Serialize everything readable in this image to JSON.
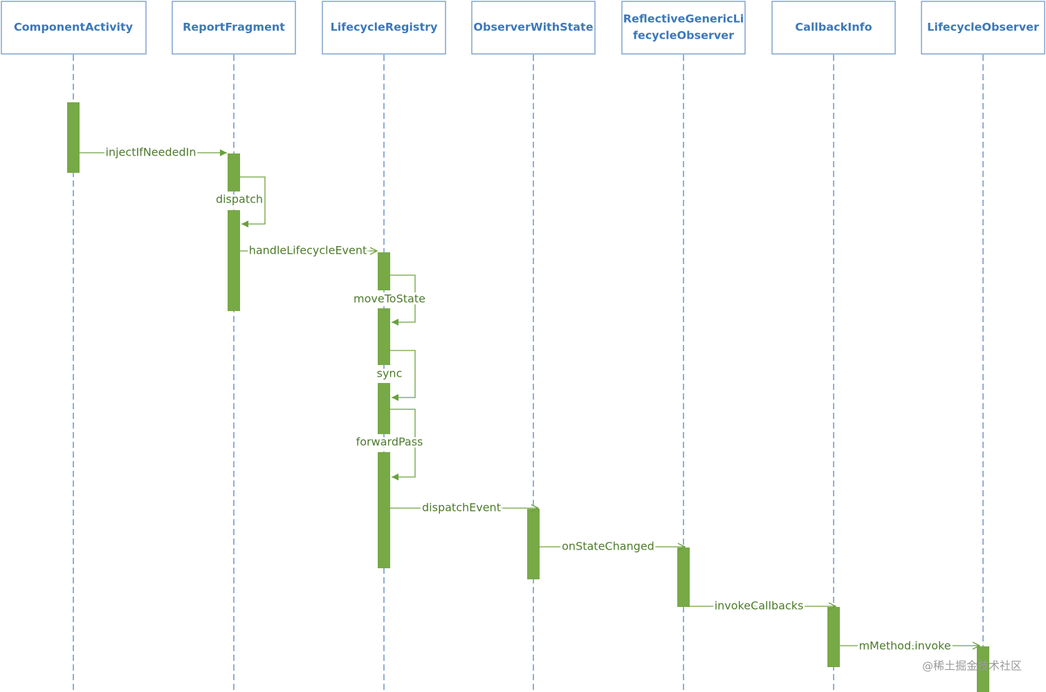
{
  "participants": [
    {
      "lines": [
        "ComponentActivity"
      ]
    },
    {
      "lines": [
        "ReportFragment"
      ]
    },
    {
      "lines": [
        "LifecycleRegistry"
      ]
    },
    {
      "lines": [
        "ObserverWithState"
      ]
    },
    {
      "lines": [
        "ReflectiveGenericLi",
        "fecycleObserver"
      ]
    },
    {
      "lines": [
        "CallbackInfo"
      ]
    },
    {
      "lines": [
        "LifecycleObserver"
      ]
    }
  ],
  "messages": [
    {
      "label": "injectIfNeededIn"
    },
    {
      "label": "dispatch"
    },
    {
      "label": "handleLifecycleEvent"
    },
    {
      "label": "moveToState"
    },
    {
      "label": "sync"
    },
    {
      "label": "forwardPass"
    },
    {
      "label": "dispatchEvent"
    },
    {
      "label": "onStateChanged"
    },
    {
      "label": "invokeCallbacks"
    },
    {
      "label": "mMethod.invoke"
    }
  ],
  "watermark": "@稀土掘金技术社区"
}
